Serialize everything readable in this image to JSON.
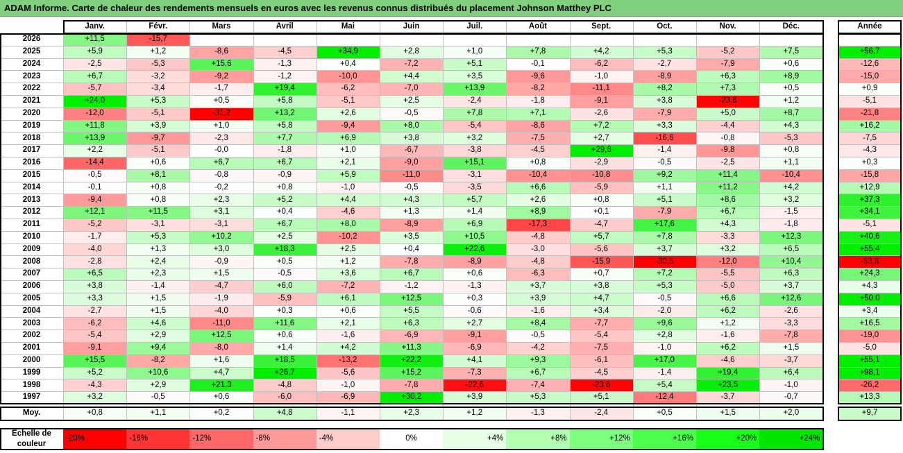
{
  "title": "ADAM Informe. Carte de chaleur des rendements mensuels en euros avec les revenus connus distribués du placement Johnson Matthey PLC",
  "chart_data": {
    "type": "heatmap",
    "columns": [
      "Janv.",
      "Févr.",
      "Mars",
      "Avril",
      "Mai",
      "Juin",
      "Juil.",
      "Août",
      "Sept.",
      "Oct.",
      "Nov.",
      "Déc."
    ],
    "year_label": "Année",
    "rows": [
      {
        "year": "2026",
        "months": [
          "+11,5",
          "-15,7",
          "",
          "",
          "",
          "",
          "",
          "",
          "",
          "",
          "",
          ""
        ],
        "annual": ""
      },
      {
        "year": "2025",
        "months": [
          "+5,9",
          "+1,2",
          "-8,6",
          "-4,5",
          "+34,9",
          "+2,8",
          "+1,0",
          "+7,8",
          "+4,2",
          "+5,3",
          "-5,2",
          "+7,5"
        ],
        "annual": "+56,7"
      },
      {
        "year": "2024",
        "months": [
          "-2,5",
          "-5,3",
          "+15,6",
          "-1,3",
          "+0,4",
          "-7,2",
          "+5,1",
          "-0,1",
          "-6,2",
          "-2,7",
          "-7,9",
          "+0,6"
        ],
        "annual": "-12,6"
      },
      {
        "year": "2023",
        "months": [
          "+6,7",
          "-3,2",
          "-9,2",
          "-1,2",
          "-10,0",
          "+4,4",
          "+3,5",
          "-9,6",
          "-1,0",
          "-8,9",
          "+6,3",
          "+8,9"
        ],
        "annual": "-15,0"
      },
      {
        "year": "2022",
        "months": [
          "-5,7",
          "-3,4",
          "-1,7",
          "+19,4",
          "-6,2",
          "-7,0",
          "+13,9",
          "-8,2",
          "-11,1",
          "+8,2",
          "+7,3",
          "+0,5"
        ],
        "annual": "+0,9"
      },
      {
        "year": "2021",
        "months": [
          "+24,0",
          "+5,3",
          "+0,5",
          "+5,8",
          "-5,1",
          "+2,5",
          "-2,4",
          "-1,8",
          "-9,1",
          "+3,8",
          "-23,6",
          "+1,2"
        ],
        "annual": "-5,1"
      },
      {
        "year": "2020",
        "months": [
          "-12,0",
          "-5,1",
          "-31,2",
          "+13,2",
          "+2,6",
          "-0,5",
          "+7,8",
          "+7,1",
          "-2,6",
          "-7,9",
          "+5,0",
          "+8,7"
        ],
        "annual": "-21,8"
      },
      {
        "year": "2019",
        "months": [
          "+11,8",
          "+3,9",
          "+1,0",
          "+5,8",
          "-9,4",
          "+8,0",
          "-5,4",
          "-8,6",
          "+7,2",
          "+3,3",
          "-4,4",
          "+4,3"
        ],
        "annual": "+16,2"
      },
      {
        "year": "2018",
        "months": [
          "+13,9",
          "-9,7",
          "-2,3",
          "+7,7",
          "+6,9",
          "+3,8",
          "+3,2",
          "-7,5",
          "+2,7",
          "-16,6",
          "-0,8",
          "-5,3"
        ],
        "annual": "-7,5"
      },
      {
        "year": "2017",
        "months": [
          "+2,2",
          "-5,1",
          "-0,0",
          "-1,8",
          "+1,0",
          "-6,7",
          "-3,8",
          "-4,5",
          "+29,6",
          "-1,4",
          "-9,8",
          "+0,8"
        ],
        "annual": "-4,3"
      },
      {
        "year": "2016",
        "months": [
          "-14,4",
          "+0,6",
          "+6,7",
          "+6,7",
          "+2,1",
          "-9,0",
          "+15,1",
          "+0,8",
          "-2,9",
          "-0,5",
          "-2,5",
          "+1,1"
        ],
        "annual": "+0,3"
      },
      {
        "year": "2015",
        "months": [
          "-0,5",
          "+8,1",
          "-0,8",
          "-0,9",
          "+5,9",
          "-11,0",
          "-3,1",
          "-10,4",
          "-10,8",
          "+9,2",
          "+11,4",
          "-10,4"
        ],
        "annual": "-15,8"
      },
      {
        "year": "2014",
        "months": [
          "-0,1",
          "+0,8",
          "-0,2",
          "+0,8",
          "-1,0",
          "-0,5",
          "-3,5",
          "+6,6",
          "-5,9",
          "+1,1",
          "+11,2",
          "+4,2"
        ],
        "annual": "+12,9"
      },
      {
        "year": "2013",
        "months": [
          "-9,4",
          "+0,8",
          "+2,3",
          "+5,2",
          "+4,4",
          "+4,3",
          "+5,7",
          "+2,6",
          "+0,8",
          "+5,1",
          "+8,6",
          "+3,2"
        ],
        "annual": "+37,3"
      },
      {
        "year": "2012",
        "months": [
          "+12,1",
          "+11,5",
          "+3,1",
          "+0,4",
          "-4,6",
          "+1,3",
          "+1,4",
          "+8,9",
          "+0,1",
          "-7,9",
          "+6,7",
          "-1,5"
        ],
        "annual": "+34,1"
      },
      {
        "year": "2011",
        "months": [
          "-5,2",
          "-3,1",
          "-3,1",
          "+6,7",
          "+8,0",
          "-8,9",
          "+6,9",
          "-17,3",
          "-4,7",
          "+17,6",
          "+4,3",
          "-1,8"
        ],
        "annual": "-5,1"
      },
      {
        "year": "2010",
        "months": [
          "-1,7",
          "+5,3",
          "+10,2",
          "+2,5",
          "-10,2",
          "+3,5",
          "+10,5",
          "-4,8",
          "+5,7",
          "+7,8",
          "-3,3",
          "+12,3"
        ],
        "annual": "+40,6"
      },
      {
        "year": "2009",
        "months": [
          "-4,0",
          "+1,3",
          "+3,0",
          "+18,3",
          "+2,5",
          "+0,4",
          "+22,6",
          "-3,0",
          "-5,6",
          "+3,7",
          "+3,2",
          "+6,5"
        ],
        "annual": "+55,4"
      },
      {
        "year": "2008",
        "months": [
          "-2,8",
          "+2,4",
          "-0,9",
          "+0,5",
          "+1,2",
          "-7,8",
          "-8,9",
          "-4,8",
          "-15,9",
          "-30,5",
          "-12,0",
          "+10,4"
        ],
        "annual": "-53,8"
      },
      {
        "year": "2007",
        "months": [
          "+6,5",
          "+2,3",
          "+1,5",
          "-0,5",
          "+3,6",
          "+6,7",
          "+0,6",
          "-6,3",
          "+0,7",
          "+7,2",
          "-5,5",
          "+6,3"
        ],
        "annual": "+24,3"
      },
      {
        "year": "2006",
        "months": [
          "+3,8",
          "-1,4",
          "-4,7",
          "+6,0",
          "-7,2",
          "-1,2",
          "-1,3",
          "+3,7",
          "+3,8",
          "+5,3",
          "-5,0",
          "+3,7"
        ],
        "annual": "+4,3"
      },
      {
        "year": "2005",
        "months": [
          "+3,3",
          "+1,5",
          "-1,9",
          "-5,9",
          "+6,1",
          "+12,5",
          "+0,3",
          "+3,9",
          "+4,7",
          "-0,5",
          "+6,6",
          "+12,6"
        ],
        "annual": "+50,0"
      },
      {
        "year": "2004",
        "months": [
          "-2,7",
          "+1,5",
          "-4,0",
          "+0,3",
          "+0,6",
          "+5,5",
          "-0,6",
          "-1,6",
          "+3,4",
          "-2,0",
          "+6,2",
          "-2,6"
        ],
        "annual": "+3,4"
      },
      {
        "year": "2003",
        "months": [
          "-6,2",
          "+4,6",
          "-11,0",
          "+11,6",
          "+2,1",
          "+6,3",
          "+2,7",
          "+8,4",
          "-7,7",
          "+9,6",
          "+1,2",
          "-3,3"
        ],
        "annual": "+16,5"
      },
      {
        "year": "2002",
        "months": [
          "-5,4",
          "+2,9",
          "+12,5",
          "+0,6",
          "-1,6",
          "-6,9",
          "-9,1",
          "-0,5",
          "-5,4",
          "+2,8",
          "-1,6",
          "-7,8"
        ],
        "annual": "-19,0"
      },
      {
        "year": "2001",
        "months": [
          "-9,1",
          "+9,4",
          "-8,0",
          "+1,4",
          "+4,2",
          "+11,3",
          "-6,9",
          "-4,2",
          "-7,5",
          "-1,0",
          "+6,2",
          "+1,5"
        ],
        "annual": "-5,0"
      },
      {
        "year": "2000",
        "months": [
          "+15,5",
          "-8,2",
          "+1,6",
          "+18,5",
          "-13,2",
          "+22,2",
          "+4,1",
          "+9,3",
          "-6,1",
          "+17,0",
          "-4,6",
          "-3,7"
        ],
        "annual": "+55,1"
      },
      {
        "year": "1999",
        "months": [
          "+5,2",
          "+10,6",
          "+4,7",
          "+26,7",
          "-5,6",
          "+15,2",
          "-7,3",
          "+6,7",
          "-4,5",
          "-1,4",
          "+19,4",
          "+6,4"
        ],
        "annual": "+98,1"
      },
      {
        "year": "1998",
        "months": [
          "-4,3",
          "+2,9",
          "+21,3",
          "-4,8",
          "-1,0",
          "-7,8",
          "-22,6",
          "-7,4",
          "-23,6",
          "+5,4",
          "+23,5",
          "-1,0"
        ],
        "annual": "-26,2"
      },
      {
        "year": "1997",
        "months": [
          "+3,2",
          "-0,5",
          "+0,6",
          "-6,0",
          "-6,9",
          "+30,2",
          "+3,9",
          "+5,3",
          "+5,1",
          "-12,4",
          "-3,7",
          "-0,7"
        ],
        "annual": "+13,3"
      }
    ],
    "average": {
      "label": "Moy.",
      "months": [
        "+0,8",
        "+1,1",
        "+0,2",
        "+4,8",
        "-1,1",
        "+2,3",
        "+1,2",
        "-1,3",
        "-2,4",
        "+0,5",
        "+1,5",
        "+2,0"
      ],
      "annual": "+9,7"
    },
    "color_scale": {
      "label_line1": "Echelle de",
      "label_line2": "couleur",
      "stops": [
        {
          "label": "-20%",
          "value": -20,
          "color": "#ff0000"
        },
        {
          "label": "-16%",
          "value": -16,
          "color": "#ff3434"
        },
        {
          "label": "-12%",
          "value": -12,
          "color": "#ff6868"
        },
        {
          "label": "-8%",
          "value": -8,
          "color": "#ff9a9a"
        },
        {
          "label": "-4%",
          "value": -4,
          "color": "#ffcccc"
        },
        {
          "label": "0%",
          "value": 0,
          "color": "#ffffff"
        },
        {
          "label": "+4%",
          "value": 4,
          "color": "#e6ffe6"
        },
        {
          "label": "+8%",
          "value": 8,
          "color": "#b2ffb2"
        },
        {
          "label": "+12%",
          "value": 12,
          "color": "#7fff7f"
        },
        {
          "label": "+16%",
          "value": 16,
          "color": "#4cff4c"
        },
        {
          "label": "+20%",
          "value": 20,
          "color": "#19ff19"
        },
        {
          "label": "+24%",
          "value": 24,
          "color": "#00e600"
        }
      ]
    }
  }
}
